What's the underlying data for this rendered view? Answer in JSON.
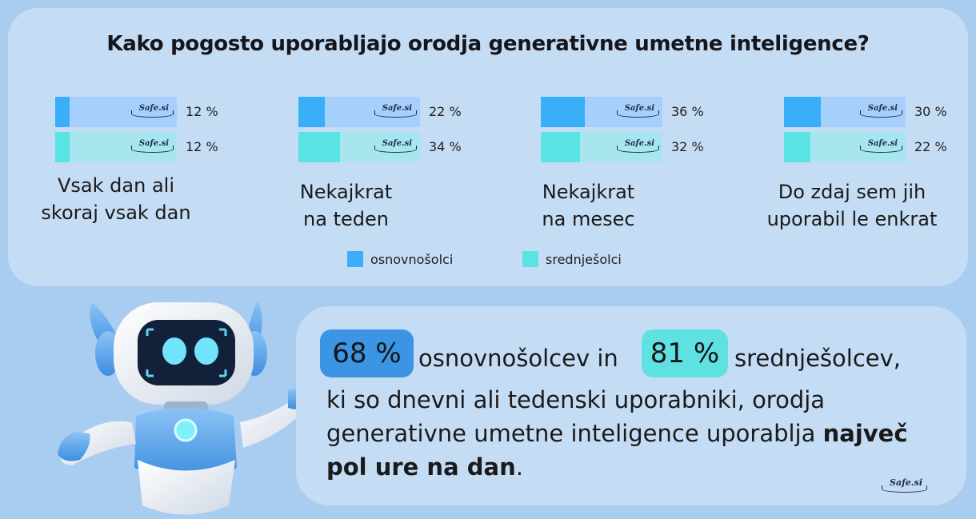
{
  "title": "Kako pogosto uporabljajo orodja generativne umetne inteligence?",
  "watermark": "Safe.si",
  "colors": {
    "primary_fill": "#3aaef7",
    "primary_track": "#a6d0fb",
    "secondary_fill": "#5ae3e4",
    "secondary_track": "#a7e6ef",
    "badge_primary": "#3b94e4",
    "badge_secondary": "#5fe1e2"
  },
  "chart_data": {
    "type": "bar",
    "title": "Kako pogosto uporabljajo orodja generativne umetne inteligence?",
    "categories": [
      "Vsak dan ali skoraj vsak dan",
      "Nekajkrat na teden",
      "Nekajkrat na mesec",
      "Do zdaj sem jih uporabil le enkrat"
    ],
    "category_lines": [
      [
        "Vsak dan ali",
        "skoraj vsak dan"
      ],
      [
        "Nekajkrat",
        "na teden"
      ],
      [
        "Nekajkrat",
        "na mesec"
      ],
      [
        "Do zdaj sem jih",
        "uporabil le enkrat"
      ]
    ],
    "series": [
      {
        "name": "osnovnošolci",
        "values": [
          12,
          22,
          36,
          30
        ],
        "labels": [
          "12 %",
          "22 %",
          "36 %",
          "30 %"
        ]
      },
      {
        "name": "srednješolci",
        "values": [
          12,
          34,
          32,
          22
        ],
        "labels": [
          "12 %",
          "34 %",
          "32 %",
          "22 %"
        ]
      }
    ],
    "ylim": [
      0,
      100
    ],
    "legend": [
      "osnovnošolci",
      "srednješolci"
    ],
    "legend_position": "bottom"
  },
  "stat": {
    "badge1": "68 %",
    "text1": "osnovnošolcev in",
    "badge2": "81 %",
    "text2": "srednješolcev,",
    "line2": "ki so dnevni ali tedenski uporabniki, orodja",
    "line3_regular": "generativne umetne inteligence uporablja ",
    "line3_bold": "največ",
    "line4_bold": "pol ure na dan",
    "line4_end": "."
  }
}
